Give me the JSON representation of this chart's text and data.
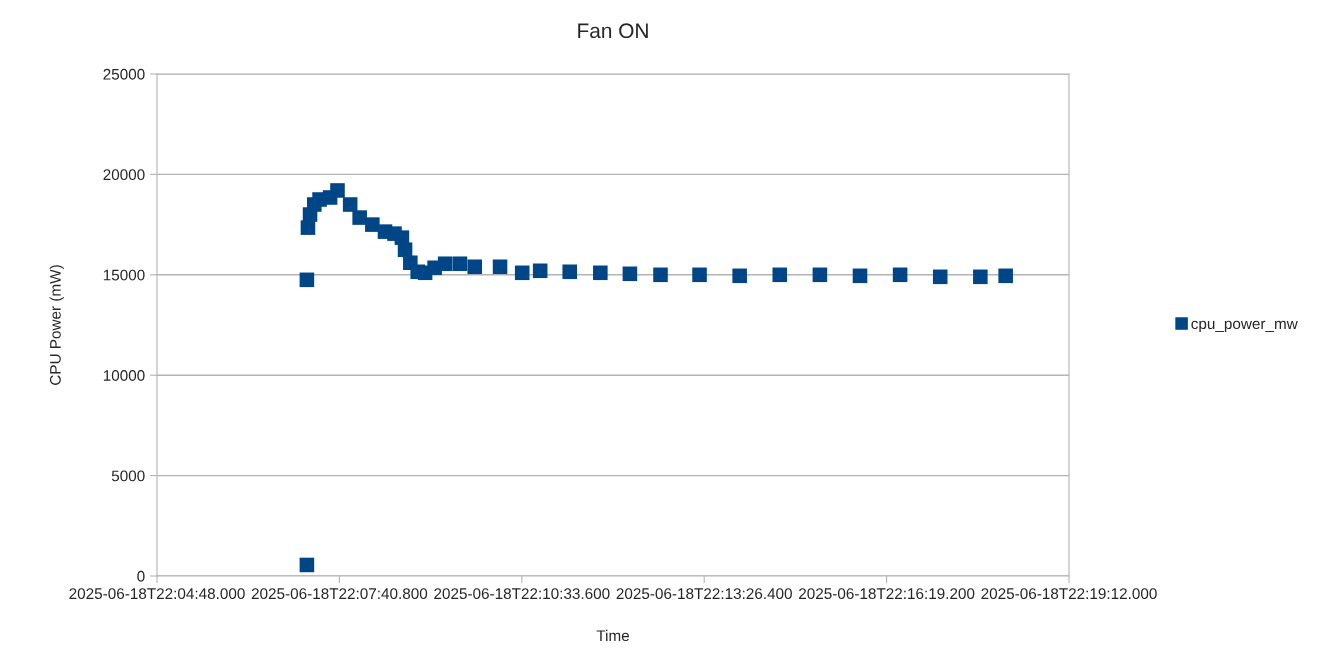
{
  "chart_data": {
    "type": "scatter",
    "title": "Fan ON",
    "xlabel": "Time",
    "ylabel": "CPU Power (mW)",
    "marker": "square",
    "grid": "y",
    "legend": "right",
    "xlim": [
      "2025-06-18T22:04:48",
      "2025-06-18T22:19:12"
    ],
    "xticks": [
      {
        "value": "2025-06-18T22:04:48",
        "label": "2025-06-18T22:04:48.000"
      },
      {
        "value": "2025-06-18T22:07:40.800",
        "label": "2025-06-18T22:07:40.800"
      },
      {
        "value": "2025-06-18T22:10:33.600",
        "label": "2025-06-18T22:10:33.600"
      },
      {
        "value": "2025-06-18T22:13:26.400",
        "label": "2025-06-18T22:13:26.400"
      },
      {
        "value": "2025-06-18T22:16:19.200",
        "label": "2025-06-18T22:16:19.200"
      },
      {
        "value": "2025-06-18T22:19:12",
        "label": "2025-06-18T22:19:12.000"
      }
    ],
    "ylim": [
      0,
      25000
    ],
    "yticks": [
      0,
      5000,
      10000,
      15000,
      20000,
      25000
    ],
    "x": [
      "2025-06-18T22:07:10",
      "2025-06-18T22:07:10",
      "2025-06-18T22:07:11",
      "2025-06-18T22:07:13",
      "2025-06-18T22:07:17",
      "2025-06-18T22:07:22",
      "2025-06-18T22:07:32",
      "2025-06-18T22:07:39",
      "2025-06-18T22:07:51",
      "2025-06-18T22:08:00",
      "2025-06-18T22:08:12",
      "2025-06-18T22:08:24",
      "2025-06-18T22:08:33",
      "2025-06-18T22:08:40",
      "2025-06-18T22:08:43",
      "2025-06-18T22:08:48",
      "2025-06-18T22:08:55",
      "2025-06-18T22:09:02",
      "2025-06-18T22:09:11",
      "2025-06-18T22:09:21",
      "2025-06-18T22:09:35",
      "2025-06-18T22:09:49",
      "2025-06-18T22:10:13",
      "2025-06-18T22:10:34",
      "2025-06-18T22:10:51",
      "2025-06-18T22:11:19",
      "2025-06-18T22:11:48",
      "2025-06-18T22:12:16",
      "2025-06-18T22:12:45",
      "2025-06-18T22:13:22",
      "2025-06-18T22:14:00",
      "2025-06-18T22:14:38",
      "2025-06-18T22:15:16",
      "2025-06-18T22:15:54",
      "2025-06-18T22:16:32",
      "2025-06-18T22:17:10",
      "2025-06-18T22:17:48",
      "2025-06-18T22:18:12"
    ],
    "series": [
      {
        "name": "cpu_power_mw",
        "color": "#004586",
        "values": [
          550,
          14750,
          17350,
          18000,
          18500,
          18750,
          18850,
          19200,
          18500,
          17850,
          17500,
          17150,
          17050,
          16850,
          16250,
          15600,
          15150,
          15100,
          15350,
          15550,
          15550,
          15400,
          15400,
          15100,
          15200,
          15150,
          15100,
          15050,
          15000,
          15000,
          14950,
          15000,
          15000,
          14950,
          15000,
          14900,
          14900,
          14950
        ]
      }
    ]
  }
}
